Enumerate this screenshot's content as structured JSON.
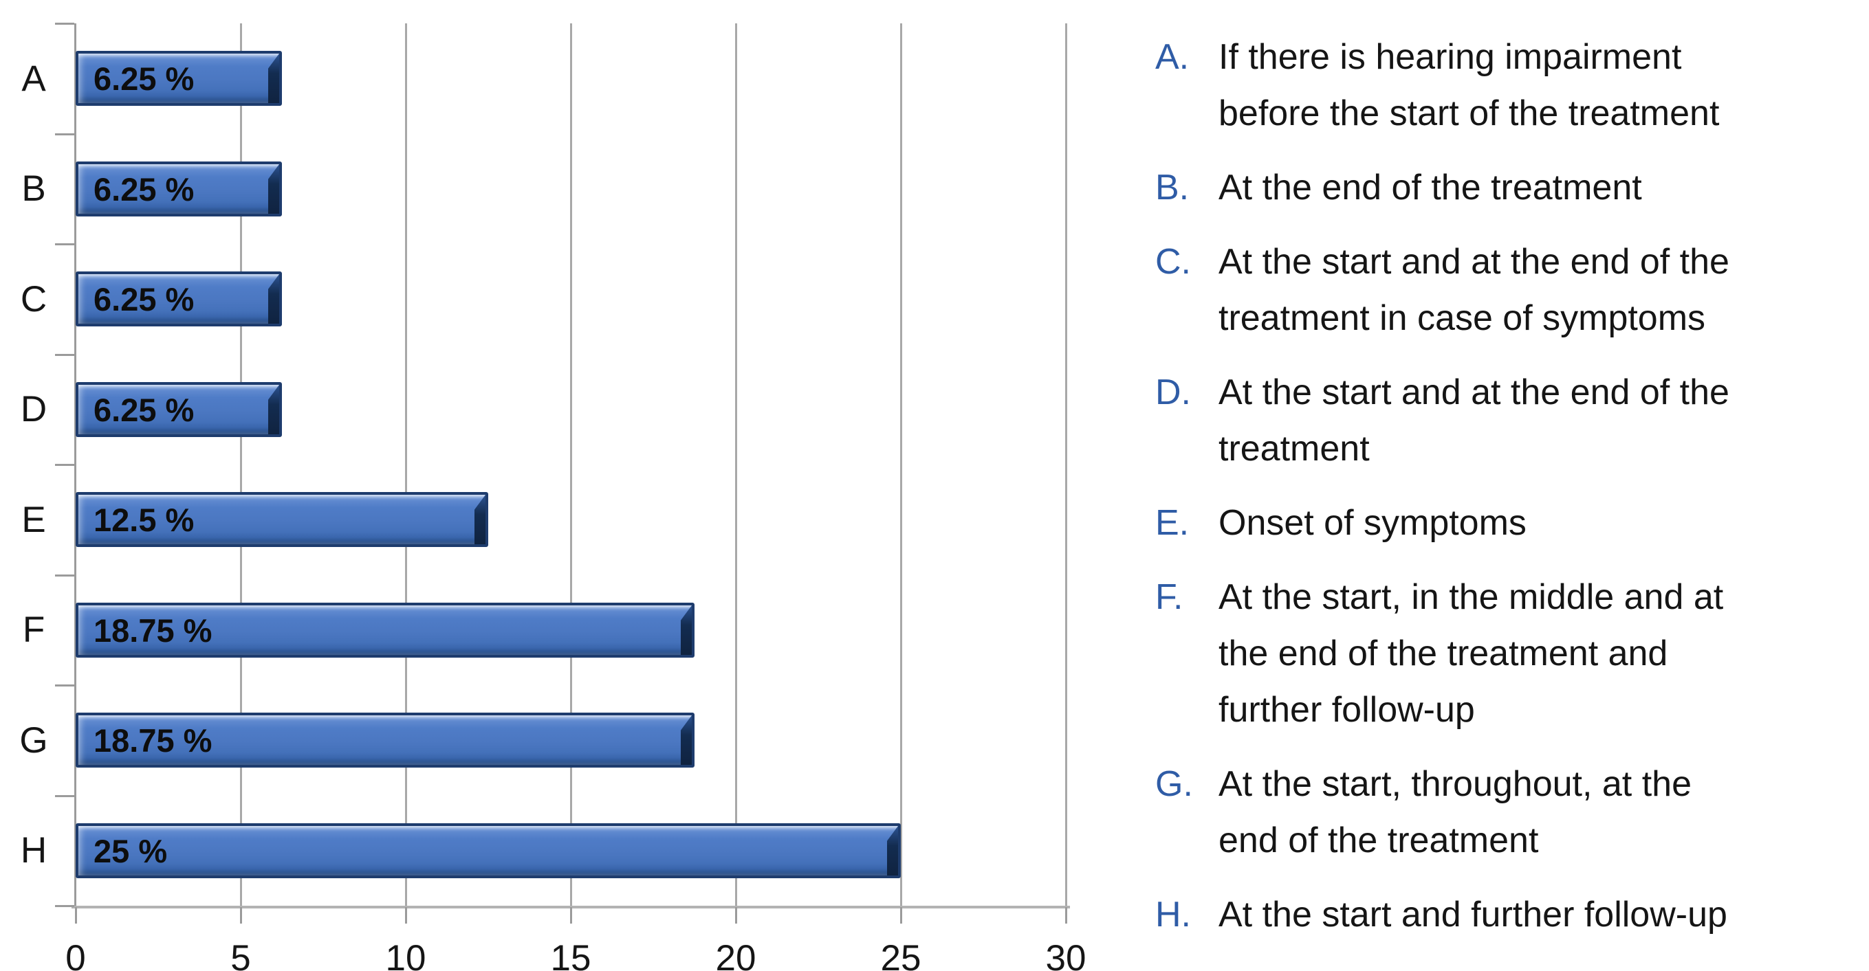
{
  "chart_data": {
    "type": "bar",
    "orientation": "horizontal",
    "title": "",
    "xlabel": "",
    "ylabel": "",
    "categories": [
      "A",
      "B",
      "C",
      "D",
      "E",
      "F",
      "G",
      "H"
    ],
    "values": [
      6.25,
      6.25,
      6.25,
      6.25,
      12.5,
      18.75,
      18.75,
      25
    ],
    "bar_labels": [
      "6.25 %",
      "6.25 %",
      "6.25 %",
      "6.25 %",
      "12.5 %",
      "18.75 %",
      "18.75 %",
      "25 %"
    ],
    "x_ticks": [
      0,
      5,
      10,
      15,
      20,
      25,
      30
    ],
    "xlim": [
      0,
      30
    ],
    "grid": "vertical",
    "legend_position": "right",
    "colors": {
      "bar_face": "#4b77c1",
      "bar_outline": "#1e3c6d",
      "bar_end_shadow": "#132c50",
      "gridline": "#a8a8a8",
      "axis_line": "#9b9b9b",
      "baseline": "#b3b3b3",
      "value_label": "#0d0d0d",
      "tick_label": "#151515",
      "legend_letter": "#2f5ca6",
      "legend_text": "#151515"
    }
  },
  "legend": {
    "items": [
      {
        "letter": "A.",
        "lines": [
          "If there is hearing impairment",
          "before the start of the treatment"
        ]
      },
      {
        "letter": "B.",
        "lines": [
          "At the end of the treatment"
        ]
      },
      {
        "letter": "C.",
        "lines": [
          "At the start and at the end of the",
          "treatment in case of symptoms"
        ]
      },
      {
        "letter": "D.",
        "lines": [
          "At the start and at the end of the",
          "treatment"
        ]
      },
      {
        "letter": "E.",
        "lines": [
          "Onset of symptoms"
        ]
      },
      {
        "letter": "F.",
        "lines": [
          "At the start, in the middle and at",
          "the end of the treatment and",
          "further follow-up"
        ]
      },
      {
        "letter": "G.",
        "lines": [
          "At the start, throughout, at the",
          "end of the treatment"
        ]
      },
      {
        "letter": "H.",
        "lines": [
          "At the start and further follow-up"
        ]
      }
    ]
  }
}
